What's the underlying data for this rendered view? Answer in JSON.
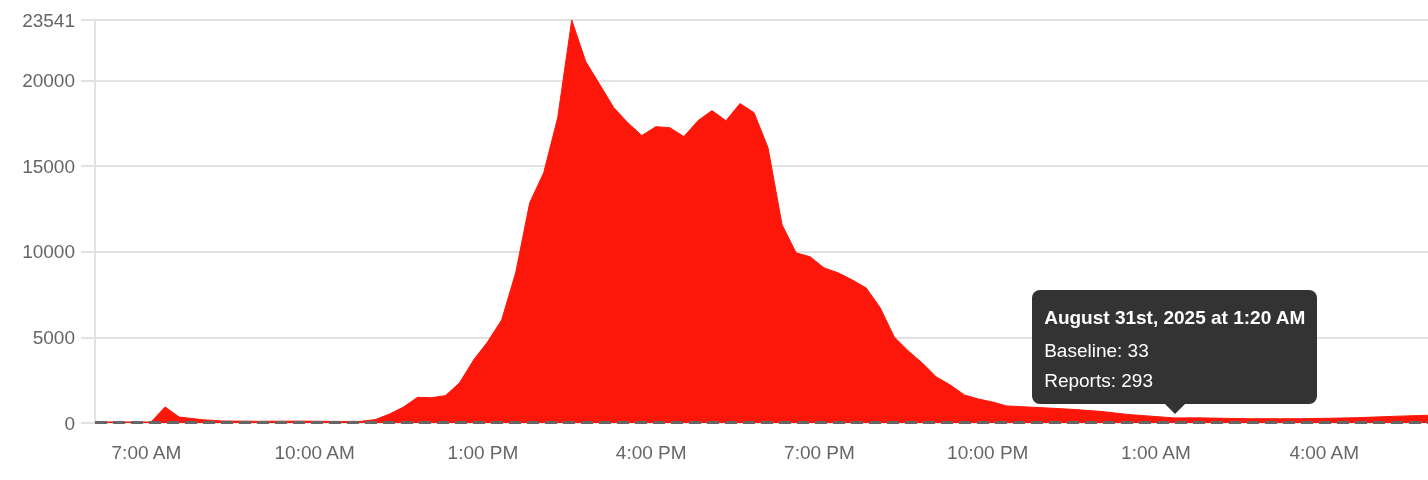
{
  "chart_data": {
    "type": "area",
    "xlim": [
      "2025-08-30T06:05",
      "2025-08-31T05:51"
    ],
    "xticks": [
      {
        "value": "2025-08-30T07:00",
        "label": "7:00 AM"
      },
      {
        "value": "2025-08-30T10:00",
        "label": "10:00 AM"
      },
      {
        "value": "2025-08-30T13:00",
        "label": "1:00 PM"
      },
      {
        "value": "2025-08-30T16:00",
        "label": "4:00 PM"
      },
      {
        "value": "2025-08-30T19:00",
        "label": "7:00 PM"
      },
      {
        "value": "2025-08-30T22:00",
        "label": "10:00 PM"
      },
      {
        "value": "2025-08-31T01:00",
        "label": "1:00 AM"
      },
      {
        "value": "2025-08-31T04:00",
        "label": "4:00 AM"
      }
    ],
    "ylim": [
      0,
      23541
    ],
    "yticks": [
      0,
      5000,
      10000,
      15000,
      20000,
      23541
    ],
    "grid": "y",
    "marker": "none",
    "series": [
      {
        "color": "#fd170a",
        "x": [
          "2025-08-30T06:05",
          "2025-08-30T07:05",
          "2025-08-30T07:20",
          "2025-08-30T07:35",
          "2025-08-30T08:00",
          "2025-08-30T08:20",
          "2025-08-30T09:00",
          "2025-08-30T09:45",
          "2025-08-30T10:30",
          "2025-08-30T10:50",
          "2025-08-30T11:05",
          "2025-08-30T11:20",
          "2025-08-30T11:35",
          "2025-08-30T11:50",
          "2025-08-30T12:05",
          "2025-08-30T12:20",
          "2025-08-30T12:35",
          "2025-08-30T12:50",
          "2025-08-30T13:05",
          "2025-08-30T13:20",
          "2025-08-30T13:35",
          "2025-08-30T13:50",
          "2025-08-30T14:05",
          "2025-08-30T14:20",
          "2025-08-30T14:35",
          "2025-08-30T14:50",
          "2025-08-30T15:05",
          "2025-08-30T15:20",
          "2025-08-30T15:35",
          "2025-08-30T15:50",
          "2025-08-30T16:05",
          "2025-08-30T16:20",
          "2025-08-30T16:35",
          "2025-08-30T16:50",
          "2025-08-30T17:05",
          "2025-08-30T17:20",
          "2025-08-30T17:35",
          "2025-08-30T17:50",
          "2025-08-30T18:05",
          "2025-08-30T18:20",
          "2025-08-30T18:35",
          "2025-08-30T18:50",
          "2025-08-30T19:05",
          "2025-08-30T19:20",
          "2025-08-30T19:35",
          "2025-08-30T19:50",
          "2025-08-30T20:05",
          "2025-08-30T20:20",
          "2025-08-30T20:35",
          "2025-08-30T20:50",
          "2025-08-30T21:05",
          "2025-08-30T21:20",
          "2025-08-30T21:35",
          "2025-08-30T21:50",
          "2025-08-30T22:05",
          "2025-08-30T22:20",
          "2025-08-30T22:55",
          "2025-08-30T23:30",
          "2025-08-31T00:00",
          "2025-08-31T00:30",
          "2025-08-31T01:20",
          "2025-08-31T01:45",
          "2025-08-31T02:40",
          "2025-08-31T03:35",
          "2025-08-31T04:30",
          "2025-08-31T05:20",
          "2025-08-31T05:51"
        ],
        "values": [
          60,
          60,
          940,
          350,
          190,
          120,
          100,
          110,
          90,
          100,
          200,
          520,
          930,
          1500,
          1480,
          1600,
          2350,
          3680,
          4740,
          6020,
          8770,
          12860,
          14620,
          17840,
          23541,
          21110,
          19770,
          18420,
          17540,
          16790,
          17310,
          17250,
          16730,
          17660,
          18250,
          17660,
          18660,
          18130,
          16080,
          11580,
          9940,
          9710,
          9060,
          8770,
          8360,
          7890,
          6730,
          5030,
          4210,
          3510,
          2690,
          2220,
          1640,
          1400,
          1230,
          1000,
          900,
          800,
          680,
          500,
          293,
          300,
          250,
          250,
          300,
          400,
          450
        ]
      }
    ],
    "ref_lines": [
      {
        "axis": "y",
        "value": 33,
        "color": "#666666",
        "line_style": "dashed"
      }
    ],
    "annotations": [
      {
        "text": "August 31st, 2025 at 1:20 AM\nBaseline: 33\nReports: 293",
        "x": "2025-08-31T01:20",
        "y": 293
      }
    ]
  }
}
